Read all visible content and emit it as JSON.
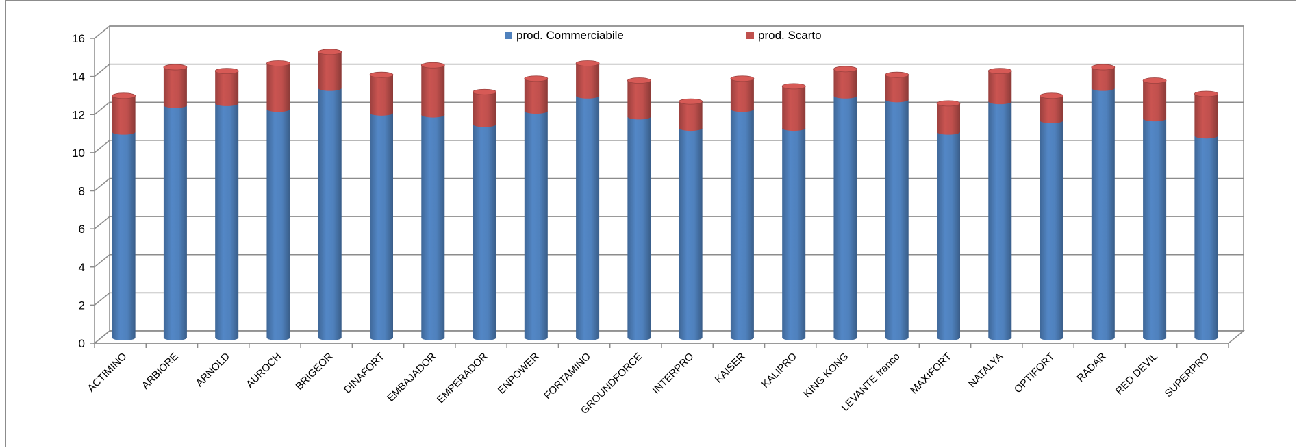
{
  "chart_data": {
    "type": "bar",
    "stacked": true,
    "title": "",
    "xlabel": "",
    "ylabel": "",
    "ylim": [
      0,
      16
    ],
    "yticks": [
      0,
      2,
      4,
      6,
      8,
      10,
      12,
      14,
      16
    ],
    "grid": true,
    "legend_position": "top-center",
    "categories": [
      "ACTIMINO",
      "ARBIORE",
      "ARNOLD",
      "AUROCH",
      "BRIGEOR",
      "DINAFORT",
      "EMBAJADOR",
      "EMPERADOR",
      "ENPOWER",
      "FORTAMINO",
      "GROUNDFORCE",
      "INTERPRO",
      "KAISER",
      "KALIPRO",
      "KING KONG",
      "LEVANTE franco",
      "MAXIFORT",
      "NATALYA",
      "OPTIFORT",
      "RADAR",
      "RED DEVIL",
      "SUPERPRO"
    ],
    "series": [
      {
        "name": "prod. Commerciabile",
        "color": "#4f81bd",
        "values": [
          10.8,
          12.2,
          12.3,
          12.0,
          13.1,
          11.8,
          11.7,
          11.2,
          11.9,
          12.7,
          11.6,
          11.0,
          12.0,
          11.0,
          12.7,
          12.5,
          10.8,
          12.4,
          11.4,
          13.1,
          11.5,
          10.6
        ]
      },
      {
        "name": "prod. Scarto",
        "color": "#c0504d",
        "values": [
          1.9,
          2.0,
          1.7,
          2.4,
          1.9,
          2.0,
          2.6,
          1.7,
          1.7,
          1.7,
          1.9,
          1.4,
          1.6,
          2.2,
          1.4,
          1.3,
          1.5,
          1.6,
          1.3,
          1.1,
          2.0,
          2.2
        ]
      }
    ]
  }
}
